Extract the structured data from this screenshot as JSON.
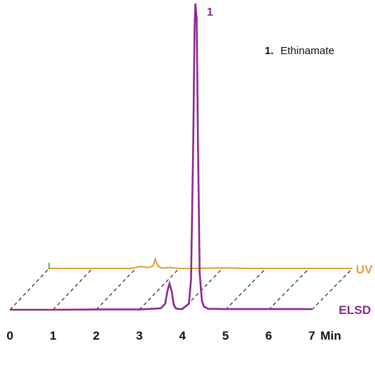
{
  "chart_data": {
    "type": "line",
    "xlabel": "Min",
    "xlim": [
      0,
      7
    ],
    "x_ticks": [
      "0",
      "1",
      "2",
      "3",
      "4",
      "5",
      "6",
      "7"
    ],
    "grid": false,
    "style": "stacked-3d-offset",
    "series": [
      {
        "name": "UV",
        "color": "#E3A33B",
        "x": [
          0,
          0.9,
          1.5,
          1.9,
          2.0,
          2.1,
          2.2,
          2.3,
          2.4,
          2.45,
          2.5,
          2.6,
          2.8,
          3.0,
          3.4,
          3.9,
          4.2,
          4.5,
          5.0,
          6.0,
          7.0
        ],
        "y": [
          0.0,
          0.0,
          0.0,
          0.0,
          0.1,
          0.2,
          0.15,
          0.1,
          0.3,
          1.0,
          0.3,
          0.05,
          0.1,
          0.0,
          0.0,
          0.05,
          0.05,
          0.0,
          0.0,
          0.0,
          0.0
        ]
      },
      {
        "name": "ELSD",
        "color": "#8A2B8F",
        "x": [
          0,
          1.0,
          2.0,
          3.0,
          3.3,
          3.5,
          3.6,
          3.65,
          3.7,
          3.75,
          3.8,
          3.85,
          3.95,
          4.0,
          4.15,
          4.2,
          4.25,
          4.28,
          4.3,
          4.33,
          4.36,
          4.4,
          4.45,
          4.5,
          4.6,
          5.0,
          6.0,
          7.0
        ],
        "y": [
          0.0,
          0.0,
          0.1,
          0.1,
          0.3,
          0.5,
          2.0,
          6.0,
          8.5,
          6.0,
          1.5,
          0.4,
          0.2,
          0.3,
          2.0,
          10.0,
          55.0,
          92.0,
          100.0,
          95.0,
          55.0,
          12.0,
          3.0,
          1.0,
          0.3,
          0.2,
          0.2,
          0.2
        ]
      }
    ],
    "peaks": [
      {
        "label": "1",
        "series": "ELSD",
        "x": 4.3
      }
    ],
    "legend": [
      {
        "number": "1.",
        "name": "Ethinamate"
      }
    ]
  }
}
